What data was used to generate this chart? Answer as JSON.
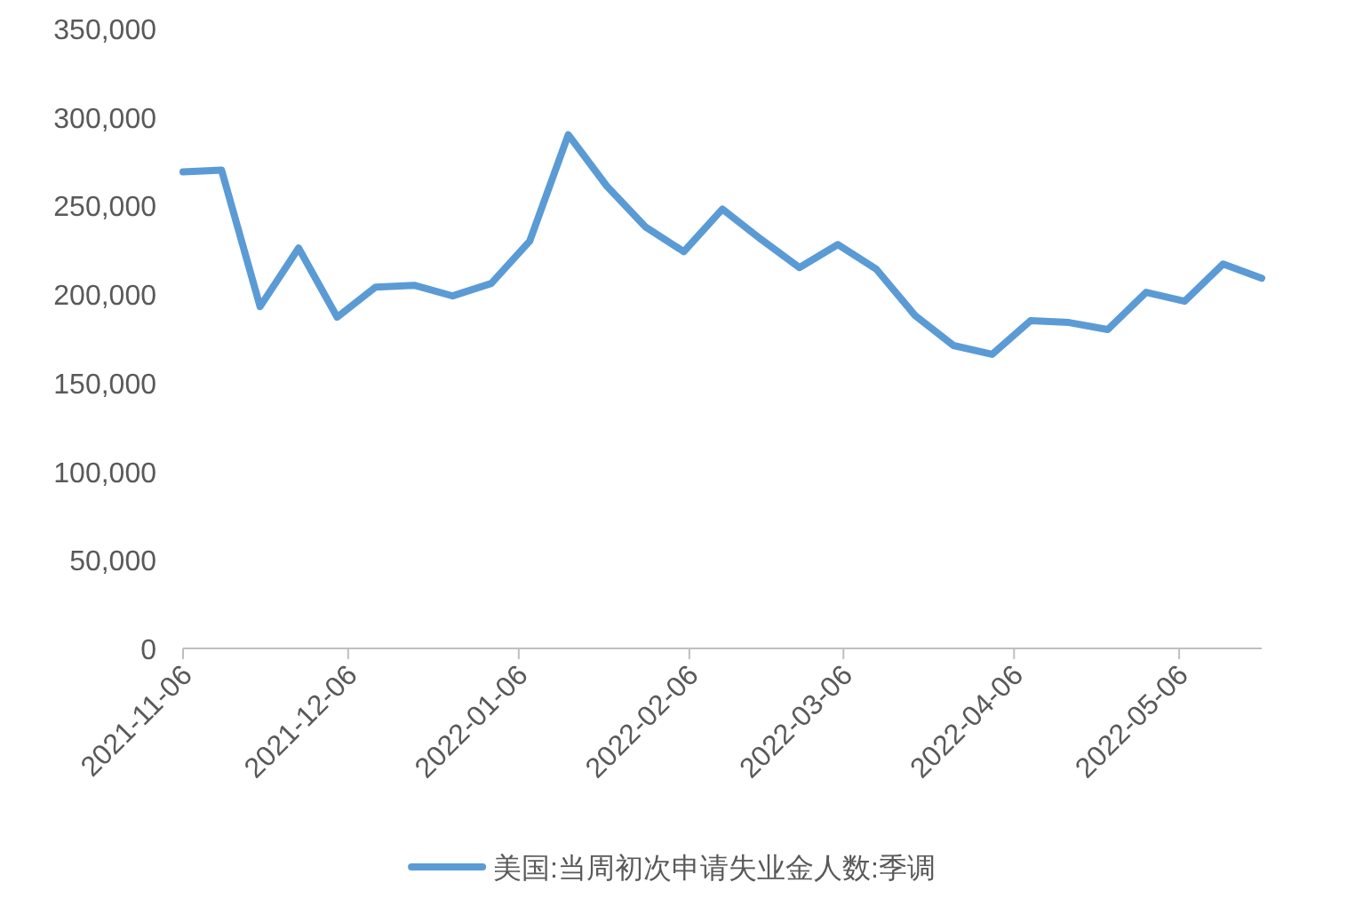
{
  "chart_data": {
    "type": "line",
    "x": [
      "2021-11-06",
      "2021-11-13",
      "2021-11-20",
      "2021-11-27",
      "2021-12-04",
      "2021-12-11",
      "2021-12-18",
      "2021-12-25",
      "2022-01-01",
      "2022-01-08",
      "2022-01-15",
      "2022-01-22",
      "2022-01-29",
      "2022-02-05",
      "2022-02-12",
      "2022-02-19",
      "2022-02-26",
      "2022-03-05",
      "2022-03-12",
      "2022-03-19",
      "2022-03-26",
      "2022-04-02",
      "2022-04-09",
      "2022-04-16",
      "2022-04-23",
      "2022-04-30",
      "2022-05-07",
      "2022-05-14",
      "2022-05-21"
    ],
    "series": [
      {
        "name": "美国:当周初次申请失业金人数:季调",
        "color": "#5b9bd5",
        "values": [
          269000,
          270000,
          193000,
          226000,
          187000,
          204000,
          205000,
          199000,
          206000,
          230000,
          290000,
          261000,
          238000,
          224000,
          248000,
          231000,
          215000,
          228000,
          214000,
          188000,
          171000,
          166000,
          185000,
          184000,
          180000,
          201000,
          196000,
          217000,
          209000
        ]
      }
    ],
    "xlim": [
      "2021-11-06",
      "2022-05-21"
    ],
    "xticks": [
      "2021-11-06",
      "2021-12-06",
      "2022-01-06",
      "2022-02-06",
      "2022-03-06",
      "2022-04-06",
      "2022-05-06"
    ],
    "ylim": [
      0,
      350000
    ],
    "yticks": [
      {
        "value": 0,
        "label": "0"
      },
      {
        "value": 50000,
        "label": "50,000"
      },
      {
        "value": 100000,
        "label": "100,000"
      },
      {
        "value": 150000,
        "label": "150,000"
      },
      {
        "value": 200000,
        "label": "200,000"
      },
      {
        "value": 250000,
        "label": "250,000"
      },
      {
        "value": 300000,
        "label": "300,000"
      },
      {
        "value": 350000,
        "label": "350,000"
      }
    ],
    "grid": false,
    "legend": "bottom",
    "marker": "none",
    "line_style": "solid"
  }
}
